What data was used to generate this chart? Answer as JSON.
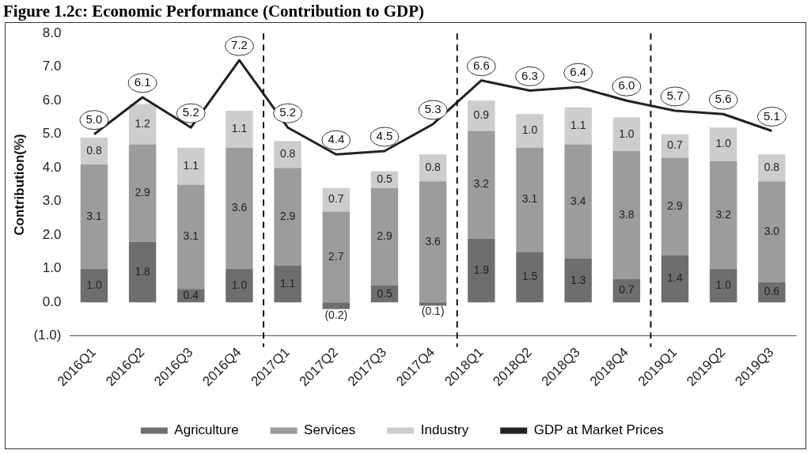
{
  "chart_data": {
    "type": "bar",
    "stacked": true,
    "title": "Figure 1.2c: Economic Performance (Contribution to GDP)",
    "ylabel": "Contribution(%)",
    "categories": [
      "2016Q1",
      "2016Q2",
      "2016Q3",
      "2016Q4",
      "2017Q1",
      "2017Q2",
      "2017Q3",
      "2017Q4",
      "2018Q1",
      "2018Q2",
      "2018Q3",
      "2018Q4",
      "2019Q1",
      "2019Q2",
      "2019Q3"
    ],
    "series": [
      {
        "name": "Agriculture",
        "color": "#6e6e6e",
        "values": [
          1.0,
          1.8,
          0.4,
          1.0,
          1.1,
          -0.2,
          0.5,
          -0.1,
          1.9,
          1.5,
          1.3,
          0.7,
          1.4,
          1.0,
          0.6
        ],
        "value_labels": [
          "1.0",
          "1.8",
          "0.4",
          "1.0",
          "1.1",
          "(0.2)",
          "0.5",
          "(0.1)",
          "1.9",
          "1.5",
          "1.3",
          "0.7",
          "1.4",
          "1.0",
          "0.6"
        ]
      },
      {
        "name": "Services",
        "color": "#9c9c9c",
        "values": [
          3.1,
          2.9,
          3.1,
          3.6,
          2.9,
          2.7,
          2.9,
          3.6,
          3.2,
          3.1,
          3.4,
          3.8,
          2.9,
          3.2,
          3.0
        ],
        "value_labels": [
          "3.1",
          "2.9",
          "3.1",
          "3.6",
          "2.9",
          "2.7",
          "2.9",
          "3.6",
          "3.2",
          "3.1",
          "3.4",
          "3.8",
          "2.9",
          "3.2",
          "3.0"
        ]
      },
      {
        "name": "Industry",
        "color": "#cdcdcd",
        "values": [
          0.8,
          1.2,
          1.1,
          1.1,
          0.8,
          0.7,
          0.5,
          0.8,
          0.9,
          1.0,
          1.1,
          1.0,
          0.7,
          1.0,
          0.8
        ],
        "value_labels": [
          "0.8",
          "1.2",
          "1.1",
          "1.1",
          "0.8",
          "0.7",
          "0.5",
          "0.8",
          "0.9",
          "1.0",
          "1.1",
          "1.0",
          "0.7",
          "1.0",
          "0.8"
        ]
      },
      {
        "name": "GDP at Market Prices",
        "type": "line",
        "color": "#222222",
        "values": [
          5.0,
          6.1,
          5.2,
          7.2,
          5.2,
          4.4,
          4.5,
          5.3,
          6.6,
          6.3,
          6.4,
          6.0,
          5.7,
          5.6,
          5.1
        ],
        "value_labels": [
          "5.0",
          "6.1",
          "5.2",
          "7.2",
          "5.2",
          "4.4",
          "4.5",
          "5.3",
          "6.6",
          "6.3",
          "6.4",
          "6.0",
          "5.7",
          "5.6",
          "5.1"
        ]
      }
    ],
    "ylim": [
      -1,
      8
    ],
    "yticks": [
      {
        "value": -1,
        "label": "(1.0)"
      },
      {
        "value": 0,
        "label": "0.0"
      },
      {
        "value": 1,
        "label": "1.0"
      },
      {
        "value": 2,
        "label": "2.0"
      },
      {
        "value": 3,
        "label": "3.0"
      },
      {
        "value": 4,
        "label": "4.0"
      },
      {
        "value": 5,
        "label": "5.0"
      },
      {
        "value": 6,
        "label": "6.0"
      },
      {
        "value": 7,
        "label": "7.0"
      },
      {
        "value": 8,
        "label": "8.0"
      }
    ],
    "legend": "bottom",
    "grid": false
  }
}
